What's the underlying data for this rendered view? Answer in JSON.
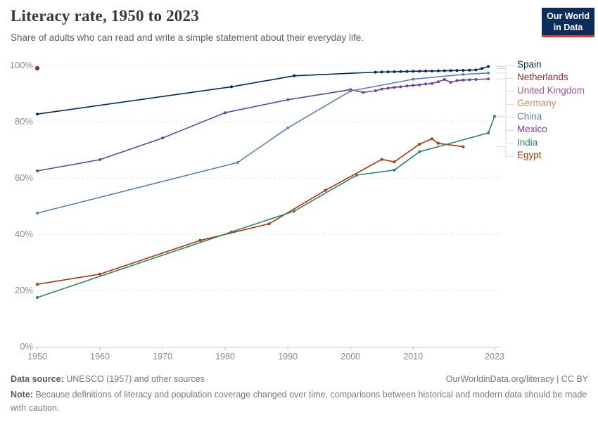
{
  "header": {
    "title": "Literacy rate, 1950 to 2023",
    "subtitle": "Share of adults who can read and write a simple statement about their everyday life."
  },
  "logo": {
    "line1": "Our World",
    "line2": "in Data",
    "bg_color": "#0C2D5B",
    "accent_color": "#E0372E"
  },
  "chart_data": {
    "type": "line",
    "title": "Literacy rate, 1950 to 2023",
    "xlabel": "",
    "ylabel": "",
    "xlim": [
      1950,
      2023
    ],
    "ylim": [
      0,
      100
    ],
    "x_ticks": [
      1950,
      1960,
      1970,
      1980,
      1990,
      2000,
      2010,
      2023
    ],
    "y_ticks": [
      0,
      20,
      40,
      60,
      80,
      100
    ],
    "y_tick_suffix": "%",
    "grid": "horizontal-dashed",
    "legend_position": "right",
    "grid_color": "#e2e2e2",
    "axis_color": "#c8c8c8",
    "tick_label_color": "#8a8a8a",
    "connector_color": "#d8d8d8",
    "series": [
      {
        "name": "Spain",
        "color": "#00295B",
        "points": [
          [
            1950,
            82.7
          ],
          [
            1981,
            92.4
          ],
          [
            1991,
            96.3
          ],
          [
            2004,
            97.6
          ],
          [
            2005,
            97.65
          ],
          [
            2006,
            97.7
          ],
          [
            2007,
            97.75
          ],
          [
            2008,
            97.8
          ],
          [
            2009,
            97.85
          ],
          [
            2010,
            97.9
          ],
          [
            2011,
            97.95
          ],
          [
            2012,
            98.0
          ],
          [
            2013,
            98.0
          ],
          [
            2014,
            98.05
          ],
          [
            2015,
            98.1
          ],
          [
            2016,
            98.15
          ],
          [
            2017,
            98.2
          ],
          [
            2018,
            98.25
          ],
          [
            2019,
            98.3
          ],
          [
            2020,
            98.4
          ],
          [
            2021,
            98.9
          ],
          [
            2022,
            99.6
          ]
        ]
      },
      {
        "name": "Netherlands",
        "color": "#883039",
        "points": [
          [
            1950,
            99.0
          ]
        ]
      },
      {
        "name": "United Kingdom",
        "color": "#A2559C",
        "points": [
          [
            1950,
            99.0
          ]
        ]
      },
      {
        "name": "Germany",
        "color": "#BC8E5A",
        "points": [
          [
            1950,
            98.9
          ]
        ]
      },
      {
        "name": "China",
        "color": "#5B7FB5",
        "points": [
          [
            1950,
            47.5
          ],
          [
            1982,
            65.5
          ],
          [
            1990,
            77.8
          ],
          [
            2000,
            90.9
          ],
          [
            2010,
            95.1
          ],
          [
            2018,
            96.8
          ],
          [
            2022,
            97.3
          ]
        ]
      },
      {
        "name": "Mexico",
        "color": "#6D429B",
        "points": [
          [
            1950,
            62.5
          ],
          [
            1960,
            66.5
          ],
          [
            1970,
            74.2
          ],
          [
            1980,
            83.2
          ],
          [
            1990,
            87.8
          ],
          [
            2000,
            91.4
          ],
          [
            2002,
            90.4
          ],
          [
            2004,
            91.0
          ],
          [
            2005,
            91.6
          ],
          [
            2006,
            91.9
          ],
          [
            2007,
            92.2
          ],
          [
            2008,
            92.4
          ],
          [
            2009,
            92.7
          ],
          [
            2010,
            92.9
          ],
          [
            2011,
            93.1
          ],
          [
            2012,
            93.4
          ],
          [
            2013,
            93.6
          ],
          [
            2014,
            94.2
          ],
          [
            2015,
            95.0
          ],
          [
            2016,
            94.0
          ],
          [
            2017,
            94.6
          ],
          [
            2018,
            94.8
          ],
          [
            2019,
            94.9
          ],
          [
            2020,
            95.0
          ],
          [
            2022,
            95.2
          ]
        ]
      },
      {
        "name": "India",
        "color": "#2C8465",
        "points": [
          [
            1950,
            17.5
          ],
          [
            1981,
            40.8
          ],
          [
            1991,
            48.2
          ],
          [
            2001,
            61.0
          ],
          [
            2007,
            62.8
          ],
          [
            2011,
            69.3
          ],
          [
            2022,
            76.0
          ],
          [
            2023,
            81.9
          ]
        ]
      },
      {
        "name": "Egypt",
        "color": "#B13507",
        "points": [
          [
            1950,
            22.2
          ],
          [
            1960,
            25.8
          ],
          [
            1976,
            37.8
          ],
          [
            1987,
            43.7
          ],
          [
            1996,
            55.6
          ],
          [
            2005,
            66.6
          ],
          [
            2007,
            65.7
          ],
          [
            2011,
            72.0
          ],
          [
            2013,
            73.9
          ],
          [
            2014,
            72.3
          ],
          [
            2018,
            71.1
          ]
        ]
      }
    ]
  },
  "footer": {
    "source_label": "Data source:",
    "source_text": "UNESCO (1957) and other sources",
    "link": "OurWorldinData.org/literacy | CC BY",
    "note_label": "Note:",
    "note_text": "Because definitions of literacy and population coverage changed over time, comparisons between historical and modern data should be made with caution."
  }
}
